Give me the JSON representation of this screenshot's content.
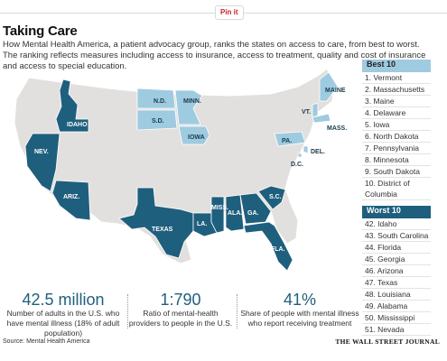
{
  "pinterest_label": "Pin it",
  "title": "Taking Care",
  "subtitle": "How Mental Health America, a patient advocacy group, ranks the states on access to care, from best to worst. The ranking reflects measures including access to insurance, access to treatment, quality and cost of insurance and access to special education.",
  "colors": {
    "base": "#e2e0de",
    "best": "#9fcbe0",
    "worst": "#1f5f7e"
  },
  "best": {
    "heading": "Best 10",
    "items": [
      "1. Vermont",
      "2. Massachusetts",
      "3. Maine",
      "4. Delaware",
      "5. Iowa",
      "6. North Dakota",
      "7. Pennsylvania",
      "8. Minnesota",
      "9. South Dakota",
      "10. District of Columbia"
    ]
  },
  "worst": {
    "heading": "Worst 10",
    "items": [
      "42. Idaho",
      "43. South Carolina",
      "44. Florida",
      "45. Georgia",
      "46. Arizona",
      "47. Texas",
      "48. Louisiana",
      "49. Alabama",
      "50. Mississippi",
      "51. Nevada"
    ]
  },
  "map_labels": {
    "nd": "N.D.",
    "minn": "MINN.",
    "sd": "S.D.",
    "iowa": "IOWA",
    "pa": "PA.",
    "del": "DEL.",
    "dc": "D.C.",
    "vt": "VT.",
    "maine": "MAINE",
    "mass": "MASS.",
    "idaho": "IDAHO",
    "nev": "NEV.",
    "ariz": "ARIZ.",
    "texas": "TEXAS",
    "la": "LA.",
    "miss": "MISS.",
    "ala": "ALA.",
    "ga": "GA.",
    "sc": "S.C.",
    "fla": "FLA."
  },
  "stats": [
    {
      "value": "42.5 million",
      "label": "Number of adults in the U.S. who have mental illness (18% of adult population)"
    },
    {
      "value": "1:790",
      "label": "Ratio of mental-health providers to people in the U.S."
    },
    {
      "value": "41%",
      "label": "Share of people with mental illness who report receiving treatment"
    }
  ],
  "source": "Source: Mental Health America",
  "brand": "THE WALL STREET JOURNAL"
}
